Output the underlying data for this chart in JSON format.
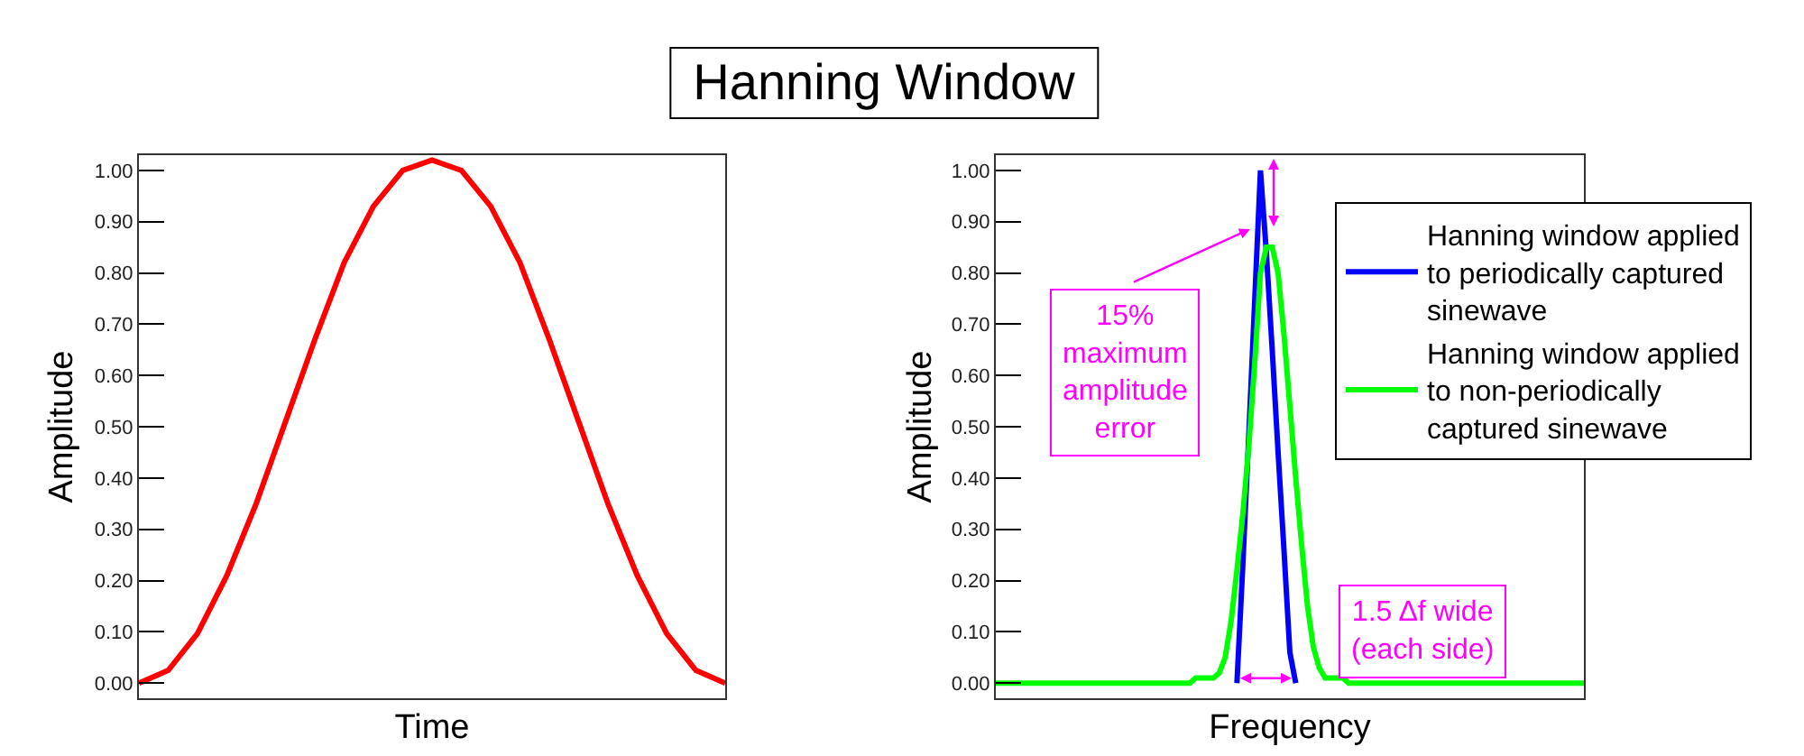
{
  "chart_data": [
    {
      "type": "line",
      "title": "Hanning Window",
      "xlabel": "Time",
      "ylabel": "Amplitude",
      "tick_labels": "y",
      "grid": false,
      "legend": false,
      "marker": "none",
      "line_style": "solid",
      "categories": [
        null,
        null,
        null,
        null,
        null,
        null,
        null,
        null,
        null,
        null,
        null,
        null,
        null,
        null,
        null,
        null,
        null,
        null,
        null,
        null,
        null
      ],
      "series": [
        {
          "color": "#ff0000",
          "values": [
            0,
            0.025,
            0.097,
            0.21,
            0.35,
            0.51,
            0.67,
            0.82,
            0.93,
            1.0,
            1.02,
            1.0,
            0.93,
            0.82,
            0.67,
            0.51,
            0.35,
            0.21,
            0.097,
            0.025,
            0
          ]
        }
      ],
      "ylim": [
        -0.03,
        1.03
      ],
      "yticks": [
        {
          "value": 0,
          "label": "0.00"
        },
        {
          "value": 0.1,
          "label": "0.10"
        },
        {
          "value": 0.2,
          "label": "0.20"
        },
        {
          "value": 0.3,
          "label": "0.30"
        },
        {
          "value": 0.4,
          "label": "0.40"
        },
        {
          "value": 0.5,
          "label": "0.50"
        },
        {
          "value": 0.6,
          "label": "0.60"
        },
        {
          "value": 0.7,
          "label": "0.70"
        },
        {
          "value": 0.8,
          "label": "0.80"
        },
        {
          "value": 0.9,
          "label": "0.90"
        },
        {
          "value": 1,
          "label": "1.00"
        }
      ]
    },
    {
      "type": "line",
      "xlabel": "Frequency",
      "ylabel": "Amplitude",
      "tick_labels": "y",
      "grid": false,
      "legend": "right",
      "marker": "none",
      "line_style": "solid",
      "categories": [
        null,
        null,
        null,
        null,
        null,
        null,
        null,
        null,
        null,
        null,
        null,
        null,
        null,
        null,
        null,
        null,
        null,
        null,
        null,
        null,
        null,
        null,
        null,
        null,
        null,
        null,
        null,
        null,
        null,
        null,
        null,
        null,
        null,
        null,
        null,
        null,
        null,
        null,
        null,
        null,
        null,
        null,
        null,
        null,
        null,
        null,
        null,
        null,
        null,
        null,
        null,
        null,
        null,
        null,
        null,
        null,
        null,
        null,
        null,
        null,
        null,
        null,
        null,
        null,
        null,
        null,
        null,
        null,
        null,
        null,
        null,
        null,
        null,
        null,
        null,
        null,
        null,
        null,
        null,
        null,
        null,
        null,
        null,
        null,
        null,
        null,
        null,
        null,
        null,
        null,
        null,
        null,
        null,
        null,
        null,
        null,
        null,
        null,
        null,
        null,
        null
      ],
      "series": [
        {
          "name": "Hanning window applied to periodically captured sinewave",
          "color": "#0000ff",
          "values": [
            null,
            null,
            null,
            null,
            null,
            null,
            null,
            null,
            null,
            null,
            null,
            null,
            null,
            null,
            null,
            null,
            null,
            null,
            null,
            null,
            null,
            null,
            null,
            null,
            null,
            null,
            null,
            null,
            null,
            null,
            null,
            null,
            null,
            null,
            null,
            null,
            null,
            null,
            null,
            null,
            null,
            0,
            0.23,
            0.48,
            0.74,
            1.0,
            0.84,
            0.65,
            0.45,
            0.26,
            0.06,
            0,
            null,
            null,
            null,
            null,
            null,
            null,
            null,
            null,
            null,
            null,
            null,
            null,
            null,
            null,
            null,
            null,
            null,
            null,
            null,
            null,
            null,
            null,
            null,
            null,
            null,
            null,
            null,
            null,
            null,
            null,
            null,
            null,
            null,
            null,
            null,
            null,
            null,
            null,
            null,
            null,
            null,
            null,
            null,
            null,
            null,
            null,
            null,
            null,
            null
          ]
        },
        {
          "name": "Hanning window applied to non-periodically captured sinewave",
          "color": "#00ff00",
          "values": [
            0,
            0,
            0,
            0,
            0,
            0,
            0,
            0,
            0,
            0,
            0,
            0,
            0,
            0,
            0,
            0,
            0,
            0,
            0,
            0,
            0,
            0,
            0,
            0,
            0,
            0,
            0,
            0,
            0,
            0,
            0,
            0,
            0,
            0,
            0.01,
            0.01,
            0.01,
            0.01,
            0.02,
            0.05,
            0.12,
            0.22,
            0.33,
            0.46,
            0.62,
            0.8,
            0.85,
            0.85,
            0.8,
            0.68,
            0.54,
            0.4,
            0.27,
            0.15,
            0.07,
            0.03,
            0.01,
            0.01,
            0.01,
            0.01,
            0,
            0,
            0,
            0,
            0,
            0,
            0,
            0,
            0,
            0,
            0,
            0,
            0,
            0,
            0,
            0,
            0,
            0,
            0,
            0,
            0,
            0,
            0,
            0,
            0,
            0,
            0,
            0,
            0,
            0,
            0,
            0,
            0,
            0,
            0,
            0,
            0,
            0,
            0,
            0,
            0
          ]
        }
      ],
      "annotations": [
        "15%\nmaximum\namplitude\nerror",
        "1.5 Δf wide\n(each side)"
      ],
      "ylim": [
        -0.03,
        1.03
      ],
      "yticks": [
        {
          "value": 0,
          "label": "0.00"
        },
        {
          "value": 0.1,
          "label": "0.10"
        },
        {
          "value": 0.2,
          "label": "0.20"
        },
        {
          "value": 0.3,
          "label": "0.30"
        },
        {
          "value": 0.4,
          "label": "0.40"
        },
        {
          "value": 0.5,
          "label": "0.50"
        },
        {
          "value": 0.6,
          "label": "0.60"
        },
        {
          "value": 0.7,
          "label": "0.70"
        },
        {
          "value": 0.8,
          "label": "0.80"
        },
        {
          "value": 0.9,
          "label": "0.90"
        },
        {
          "value": 1,
          "label": "1.00"
        }
      ]
    }
  ]
}
